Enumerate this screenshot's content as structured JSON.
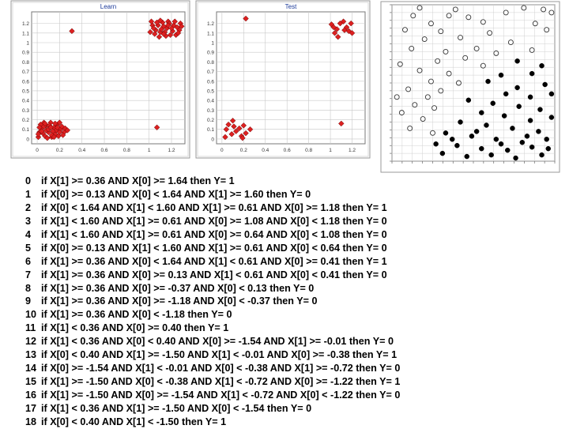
{
  "colors": {
    "points": "#dd2020",
    "point_stroke": "#660000",
    "title_text": "#1c3a99",
    "frame": "#9a9a9a",
    "grid": "#c8c8c8",
    "dots": "#000000"
  },
  "chart_data": [
    {
      "type": "scatter",
      "title": "Learn",
      "xticks": [
        "0",
        "0.2",
        "0.4",
        "0.6",
        "0.8",
        "1",
        "1.2"
      ],
      "yticks": [
        "0",
        "0.1",
        "0.2",
        "0.3",
        "0.4",
        "0.5",
        "0.6",
        "0.7",
        "0.8",
        "0.9",
        "1",
        "1.1",
        "1.2"
      ],
      "xlim": [
        -0.05,
        1.32
      ],
      "ylim": [
        -0.05,
        1.32
      ],
      "grid": true,
      "points": [
        [
          0.06,
          0.17
        ],
        [
          0.11,
          0.11
        ],
        [
          0.02,
          0.07
        ],
        [
          0.16,
          0.05
        ],
        [
          0.08,
          0.14
        ],
        [
          0.21,
          0.1
        ],
        [
          0.13,
          0.02
        ],
        [
          0.04,
          0.11
        ],
        [
          0.18,
          0.15
        ],
        [
          0.1,
          0.07
        ],
        [
          0.24,
          0.07
        ],
        [
          0.01,
          0.02
        ],
        [
          0.15,
          0.12
        ],
        [
          0.07,
          0.03
        ],
        [
          0.2,
          0.17
        ],
        [
          0.12,
          0.17
        ],
        [
          0.03,
          0.15
        ],
        [
          0.17,
          0.09
        ],
        [
          0.09,
          0.01
        ],
        [
          0.22,
          0.13
        ],
        [
          0.05,
          0.06
        ],
        [
          0.14,
          0.08
        ],
        [
          0.19,
          0.03
        ],
        [
          0.25,
          0.11
        ],
        [
          0.11,
          0.14
        ],
        [
          0.02,
          0.12
        ],
        [
          0.16,
          0.16
        ],
        [
          0.08,
          0.09
        ],
        [
          0.13,
          0.04
        ],
        [
          0.23,
          0.04
        ],
        [
          0.06,
          0.13
        ],
        [
          0.2,
          0.07
        ],
        [
          0.27,
          0.09
        ],
        [
          0.04,
          0.08
        ],
        [
          0.15,
          0.02
        ],
        [
          0.1,
          0.1
        ],
        [
          0.18,
          0.12
        ],
        [
          0.01,
          0.05
        ],
        [
          0.07,
          0.16
        ],
        [
          0.12,
          0.12
        ],
        [
          0.31,
          1.12
        ],
        [
          1.07,
          0.12
        ],
        [
          1.03,
          1.18
        ],
        [
          1.1,
          1.11
        ],
        [
          1.17,
          1.22
        ],
        [
          1.24,
          1.08
        ],
        [
          1.06,
          1.13
        ],
        [
          1.13,
          1.17
        ],
        [
          1.21,
          1.12
        ],
        [
          1.28,
          1.2
        ],
        [
          1.02,
          1.22
        ],
        [
          1.09,
          1.06
        ],
        [
          1.16,
          1.15
        ],
        [
          1.25,
          1.16
        ],
        [
          1.05,
          1.09
        ],
        [
          1.12,
          1.21
        ],
        [
          1.19,
          1.08
        ],
        [
          1.27,
          1.13
        ],
        [
          1.08,
          1.18
        ],
        [
          1.14,
          1.11
        ],
        [
          1.22,
          1.18
        ],
        [
          1.04,
          1.15
        ],
        [
          1.18,
          1.2
        ],
        [
          1.26,
          1.1
        ],
        [
          1.11,
          1.14
        ],
        [
          1.15,
          1.07
        ],
        [
          1.29,
          1.17
        ],
        [
          1.07,
          1.21
        ],
        [
          1.2,
          1.15
        ],
        [
          1.23,
          1.22
        ],
        [
          1.01,
          1.11
        ],
        [
          1.13,
          1.09
        ],
        [
          1.17,
          1.18
        ],
        [
          1.1,
          1.23
        ]
      ]
    },
    {
      "type": "scatter",
      "title": "Test",
      "xticks": [
        "0",
        "0.2",
        "0.4",
        "0.6",
        "0.8",
        "1",
        "1.2"
      ],
      "yticks": [
        "0",
        "0.1",
        "0.2",
        "0.3",
        "0.4",
        "0.5",
        "0.6",
        "0.7",
        "0.8",
        "0.9",
        "1",
        "1.1",
        "1.2"
      ],
      "xlim": [
        -0.05,
        1.32
      ],
      "ylim": [
        -0.05,
        1.32
      ],
      "grid": true,
      "points": [
        [
          0.06,
          0.15
        ],
        [
          0.13,
          0.08
        ],
        [
          0.2,
          0.14
        ],
        [
          0.09,
          0.05
        ],
        [
          0.16,
          0.11
        ],
        [
          0.04,
          0.1
        ],
        [
          0.22,
          0.06
        ],
        [
          0.11,
          0.13
        ],
        [
          0.18,
          0.03
        ],
        [
          0.26,
          0.1
        ],
        [
          0.1,
          0.19
        ],
        [
          0.19,
          0.01
        ],
        [
          0.03,
          0.02
        ],
        [
          0.22,
          1.25
        ],
        [
          1.1,
          0.16
        ],
        [
          1.01,
          1.19
        ],
        [
          1.06,
          1.14
        ],
        [
          1.12,
          1.22
        ],
        [
          1.17,
          1.12
        ],
        [
          1.04,
          1.1
        ],
        [
          1.09,
          1.2
        ],
        [
          1.15,
          1.16
        ],
        [
          1.2,
          1.1
        ],
        [
          1.07,
          1.06
        ],
        [
          1.13,
          1.13
        ],
        [
          1.19,
          1.2
        ],
        [
          1.03,
          1.16
        ]
      ]
    },
    {
      "type": "scatter",
      "xticks": [
        "",
        "",
        "",
        "",
        "",
        "",
        "",
        "",
        "",
        "",
        "",
        "",
        "",
        "",
        "",
        "",
        ""
      ],
      "yticks": [
        "",
        "",
        "",
        "",
        "",
        "",
        "",
        "",
        "",
        "",
        "",
        "",
        "",
        "",
        "",
        "",
        "",
        "",
        "",
        "",
        ""
      ],
      "xlim": [
        0,
        1
      ],
      "ylim": [
        0,
        1
      ],
      "grid": true,
      "series": [
        {
          "marker": "open-circle",
          "points": [
            [
              0.17,
              0.98
            ],
            [
              0.39,
              0.97
            ],
            [
              0.81,
              0.98
            ],
            [
              0.93,
              0.97
            ],
            [
              0.13,
              0.93
            ],
            [
              0.35,
              0.93
            ],
            [
              0.47,
              0.92
            ],
            [
              0.7,
              0.95
            ],
            [
              0.98,
              0.95
            ],
            [
              0.24,
              0.88
            ],
            [
              0.56,
              0.89
            ],
            [
              0.88,
              0.88
            ],
            [
              0.08,
              0.84
            ],
            [
              0.3,
              0.83
            ],
            [
              0.6,
              0.82
            ],
            [
              0.95,
              0.84
            ],
            [
              0.2,
              0.78
            ],
            [
              0.42,
              0.79
            ],
            [
              0.73,
              0.76
            ],
            [
              0.52,
              0.72
            ],
            [
              0.12,
              0.72
            ],
            [
              0.33,
              0.7
            ],
            [
              0.64,
              0.69
            ],
            [
              0.86,
              0.71
            ],
            [
              0.28,
              0.64
            ],
            [
              0.45,
              0.66
            ],
            [
              0.05,
              0.62
            ],
            [
              0.56,
              0.61
            ],
            [
              0.17,
              0.58
            ],
            [
              0.35,
              0.56
            ],
            [
              0.24,
              0.51
            ],
            [
              0.41,
              0.5
            ],
            [
              0.1,
              0.46
            ],
            [
              0.03,
              0.41
            ],
            [
              0.22,
              0.41
            ],
            [
              0.3,
              0.45
            ],
            [
              0.14,
              0.36
            ],
            [
              0.06,
              0.31
            ],
            [
              0.26,
              0.34
            ],
            [
              0.19,
              0.27
            ],
            [
              0.11,
              0.21
            ],
            [
              0.25,
              0.18
            ]
          ]
        },
        {
          "marker": "filled-circle",
          "points": [
            [
              0.77,
              0.64
            ],
            [
              0.92,
              0.61
            ],
            [
              0.67,
              0.55
            ],
            [
              0.86,
              0.56
            ],
            [
              0.59,
              0.51
            ],
            [
              0.77,
              0.47
            ],
            [
              0.94,
              0.49
            ],
            [
              0.7,
              0.43
            ],
            [
              0.85,
              0.41
            ],
            [
              0.98,
              0.43
            ],
            [
              0.47,
              0.39
            ],
            [
              0.62,
              0.37
            ],
            [
              0.78,
              0.35
            ],
            [
              0.91,
              0.33
            ],
            [
              0.55,
              0.31
            ],
            [
              0.69,
              0.29
            ],
            [
              0.85,
              0.26
            ],
            [
              0.98,
              0.28
            ],
            [
              0.42,
              0.25
            ],
            [
              0.58,
              0.23
            ],
            [
              0.74,
              0.21
            ],
            [
              0.9,
              0.19
            ],
            [
              0.33,
              0.18
            ],
            [
              0.49,
              0.16
            ],
            [
              0.64,
              0.14
            ],
            [
              0.8,
              0.12
            ],
            [
              0.95,
              0.14
            ],
            [
              0.27,
              0.11
            ],
            [
              0.4,
              0.1
            ],
            [
              0.55,
              0.08
            ],
            [
              0.71,
              0.07
            ],
            [
              0.86,
              0.09
            ],
            [
              0.31,
              0.05
            ],
            [
              0.46,
              0.03
            ],
            [
              0.61,
              0.04
            ],
            [
              0.76,
              0.02
            ],
            [
              0.92,
              0.04
            ],
            [
              0.52,
              0.19
            ],
            [
              0.67,
              0.11
            ],
            [
              0.83,
              0.16
            ],
            [
              0.37,
              0.14
            ],
            [
              0.96,
              0.08
            ]
          ]
        }
      ]
    }
  ],
  "rules": [
    {
      "num": "0",
      "text": "if X[1] >= 0.36 AND X[0] >= 1.64 then Y= 1"
    },
    {
      "num": "1",
      "text": "if X[0] >= 0.13 AND X[0] < 1.64 AND X[1] >= 1.60 then Y= 0"
    },
    {
      "num": "2",
      "text": "if X[0] < 1.64 AND X[1] < 1.60 AND X[1] >= 0.61 AND X[0] >= 1.18 then Y= 1"
    },
    {
      "num": "3",
      "text": "if X[1] < 1.60 AND X[1] >= 0.61 AND X[0] >= 1.08 AND X[0] < 1.18 then Y= 0"
    },
    {
      "num": "4",
      "text": "if X[1] < 1.60 AND X[1] >= 0.61 AND X[0] >= 0.64 AND X[0] < 1.08 then Y= 0"
    },
    {
      "num": "5",
      "text": "if X[0] >= 0.13 AND X[1] < 1.60 AND X[1] >= 0.61 AND X[0] < 0.64 then Y= 0"
    },
    {
      "num": "6",
      "text": "if X[1] >= 0.36 AND X[0] < 1.64 AND X[1] < 0.61 AND X[0] >= 0.41 then Y= 1"
    },
    {
      "num": "7",
      "text": "if X[1] >= 0.36 AND X[0] >= 0.13 AND X[1] < 0.61 AND X[0] < 0.41 then Y= 0"
    },
    {
      "num": "8",
      "text": "if X[1] >= 0.36 AND X[0] >= -0.37 AND X[0] < 0.13 then Y= 0"
    },
    {
      "num": "9",
      "text": "if X[1] >= 0.36 AND X[0] >= -1.18 AND X[0] < -0.37 then Y= 0"
    },
    {
      "num": "10",
      "text": "if X[1] >= 0.36 AND X[0] < -1.18 then Y= 0"
    },
    {
      "num": "11",
      "text": "if X[1] < 0.36 AND X[0] >= 0.40 then Y= 1"
    },
    {
      "num": "12",
      "text": "if X[1] < 0.36 AND X[0] < 0.40 AND X[0] >= -1.54 AND X[1] >= -0.01 then Y= 0"
    },
    {
      "num": "13",
      "text": "if X[0] < 0.40 AND X[1] >= -1.50 AND X[1] < -0.01 AND X[0] >= -0.38 then Y= 1"
    },
    {
      "num": "14",
      "text": "if X[0] >= -1.54 AND X[1] < -0.01 AND X[0] < -0.38 AND X[1] >= -0.72 then Y= 0"
    },
    {
      "num": "15",
      "text": "if X[1] >= -1.50 AND X[0] < -0.38 AND X[1] < -0.72 AND X[0] >= -1.22 then Y= 1"
    },
    {
      "num": "16",
      "text": "if X[1] >= -1.50 AND X[0] >= -1.54 AND X[1] < -0.72 AND X[0] < -1.22 then Y= 0"
    },
    {
      "num": "17",
      "text": "if X[1] < 0.36 AND X[1] >= -1.50 AND X[0] < -1.54 then Y= 0"
    },
    {
      "num": "18",
      "text": "if X[0] < 0.40 AND X[1] < -1.50 then Y= 1"
    }
  ]
}
